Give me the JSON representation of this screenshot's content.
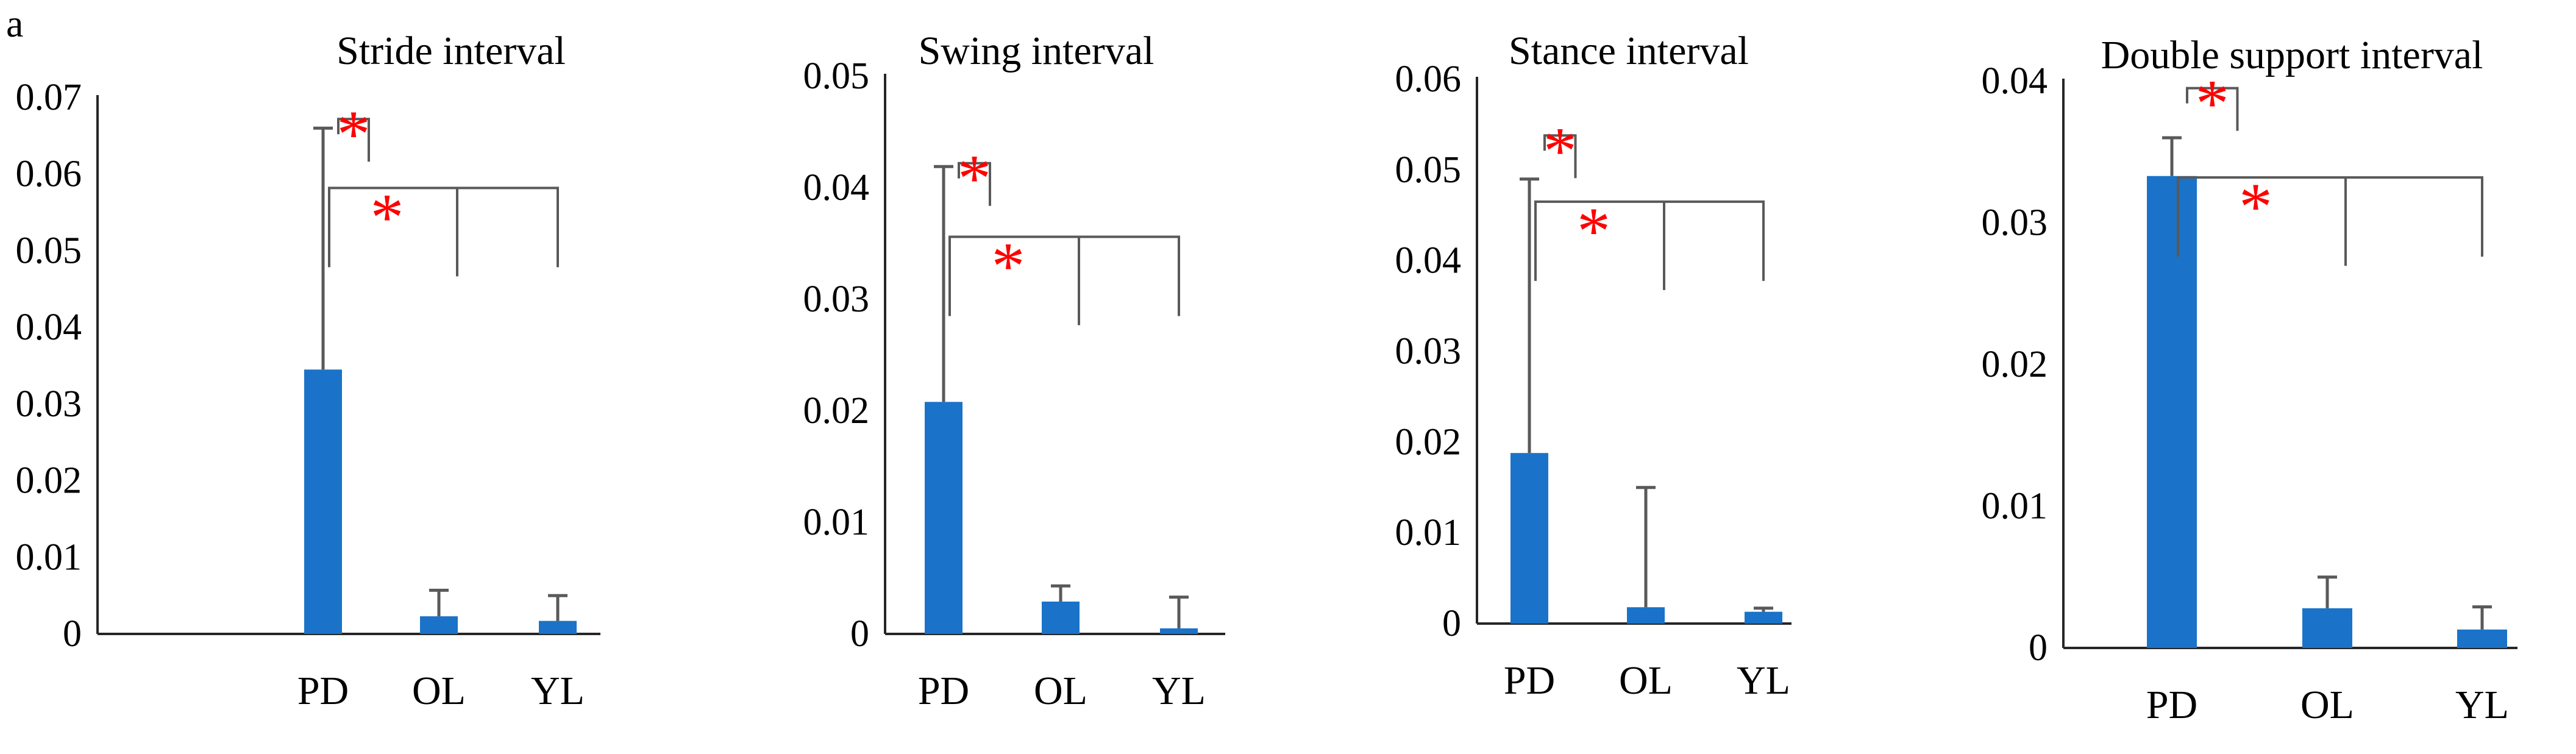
{
  "panel_label": "a",
  "colors": {
    "bar": "#1a73c8",
    "axis": "#262626",
    "error_bar": "#595959",
    "bracket": "#595959",
    "asterisk": "#ff0000"
  },
  "significance_symbol": "*",
  "chart_data": [
    {
      "type": "bar",
      "title": "Stride interval",
      "categories": [
        "PD",
        "OL",
        "YL"
      ],
      "values": [
        0.0345,
        0.0023,
        0.0017
      ],
      "error_upper": [
        0.066,
        0.0057,
        0.005
      ],
      "ylim": [
        0,
        0.07
      ],
      "yticks": [
        "0",
        "0.01",
        "0.02",
        "0.03",
        "0.04",
        "0.05",
        "0.06",
        "0.07"
      ],
      "xlabel": "",
      "ylabel": "",
      "grid": false,
      "significance": [
        {
          "from": "PD",
          "to": "OL",
          "label": "*",
          "y": 0.0672
        },
        {
          "from": "PD",
          "to": [
            "OL",
            "YL"
          ],
          "label": "*",
          "y": 0.0582
        }
      ]
    },
    {
      "type": "bar",
      "title": "Swing interval",
      "categories": [
        "PD",
        "OL",
        "YL"
      ],
      "values": [
        0.0208,
        0.0029,
        0.0005
      ],
      "error_upper": [
        0.0419,
        0.0043,
        0.0033
      ],
      "ylim": [
        0,
        0.05
      ],
      "yticks": [
        "0",
        "0.01",
        "0.02",
        "0.03",
        "0.04",
        "0.05"
      ],
      "xlabel": "",
      "ylabel": "",
      "grid": false,
      "significance": [
        {
          "from": "PD",
          "to": "OL",
          "label": "*",
          "y": 0.0422
        },
        {
          "from": "PD",
          "to": [
            "OL",
            "YL"
          ],
          "label": "*",
          "y": 0.0356
        }
      ]
    },
    {
      "type": "bar",
      "title": "Stance interval",
      "categories": [
        "PD",
        "OL",
        "YL"
      ],
      "values": [
        0.0188,
        0.0018,
        0.0013
      ],
      "error_upper": [
        0.049,
        0.015,
        0.0017
      ],
      "ylim": [
        0,
        0.06
      ],
      "yticks": [
        "0",
        "0.01",
        "0.02",
        "0.03",
        "0.04",
        "0.05",
        "0.06"
      ],
      "xlabel": "",
      "ylabel": "",
      "grid": false,
      "significance": [
        {
          "from": "PD",
          "to": "OL",
          "label": "*",
          "y": 0.0538
        },
        {
          "from": "PD",
          "to": [
            "OL",
            "YL"
          ],
          "label": "*",
          "y": 0.0465
        }
      ]
    },
    {
      "type": "bar",
      "title": "Double support interval",
      "categories": [
        "PD",
        "OL",
        "YL"
      ],
      "values": [
        0.0333,
        0.0028,
        0.0013
      ],
      "error_upper": [
        0.036,
        0.005,
        0.0029
      ],
      "ylim": [
        0,
        0.04
      ],
      "yticks": [
        "0",
        "0.01",
        "0.02",
        "0.03",
        "0.04"
      ],
      "xlabel": "",
      "ylabel": "",
      "grid": false,
      "significance": [
        {
          "from": "PD",
          "to": "OL",
          "label": "*",
          "y": 0.0395
        },
        {
          "from": "PD",
          "to": [
            "OL",
            "YL"
          ],
          "label": "*",
          "y": 0.0332
        }
      ]
    }
  ]
}
